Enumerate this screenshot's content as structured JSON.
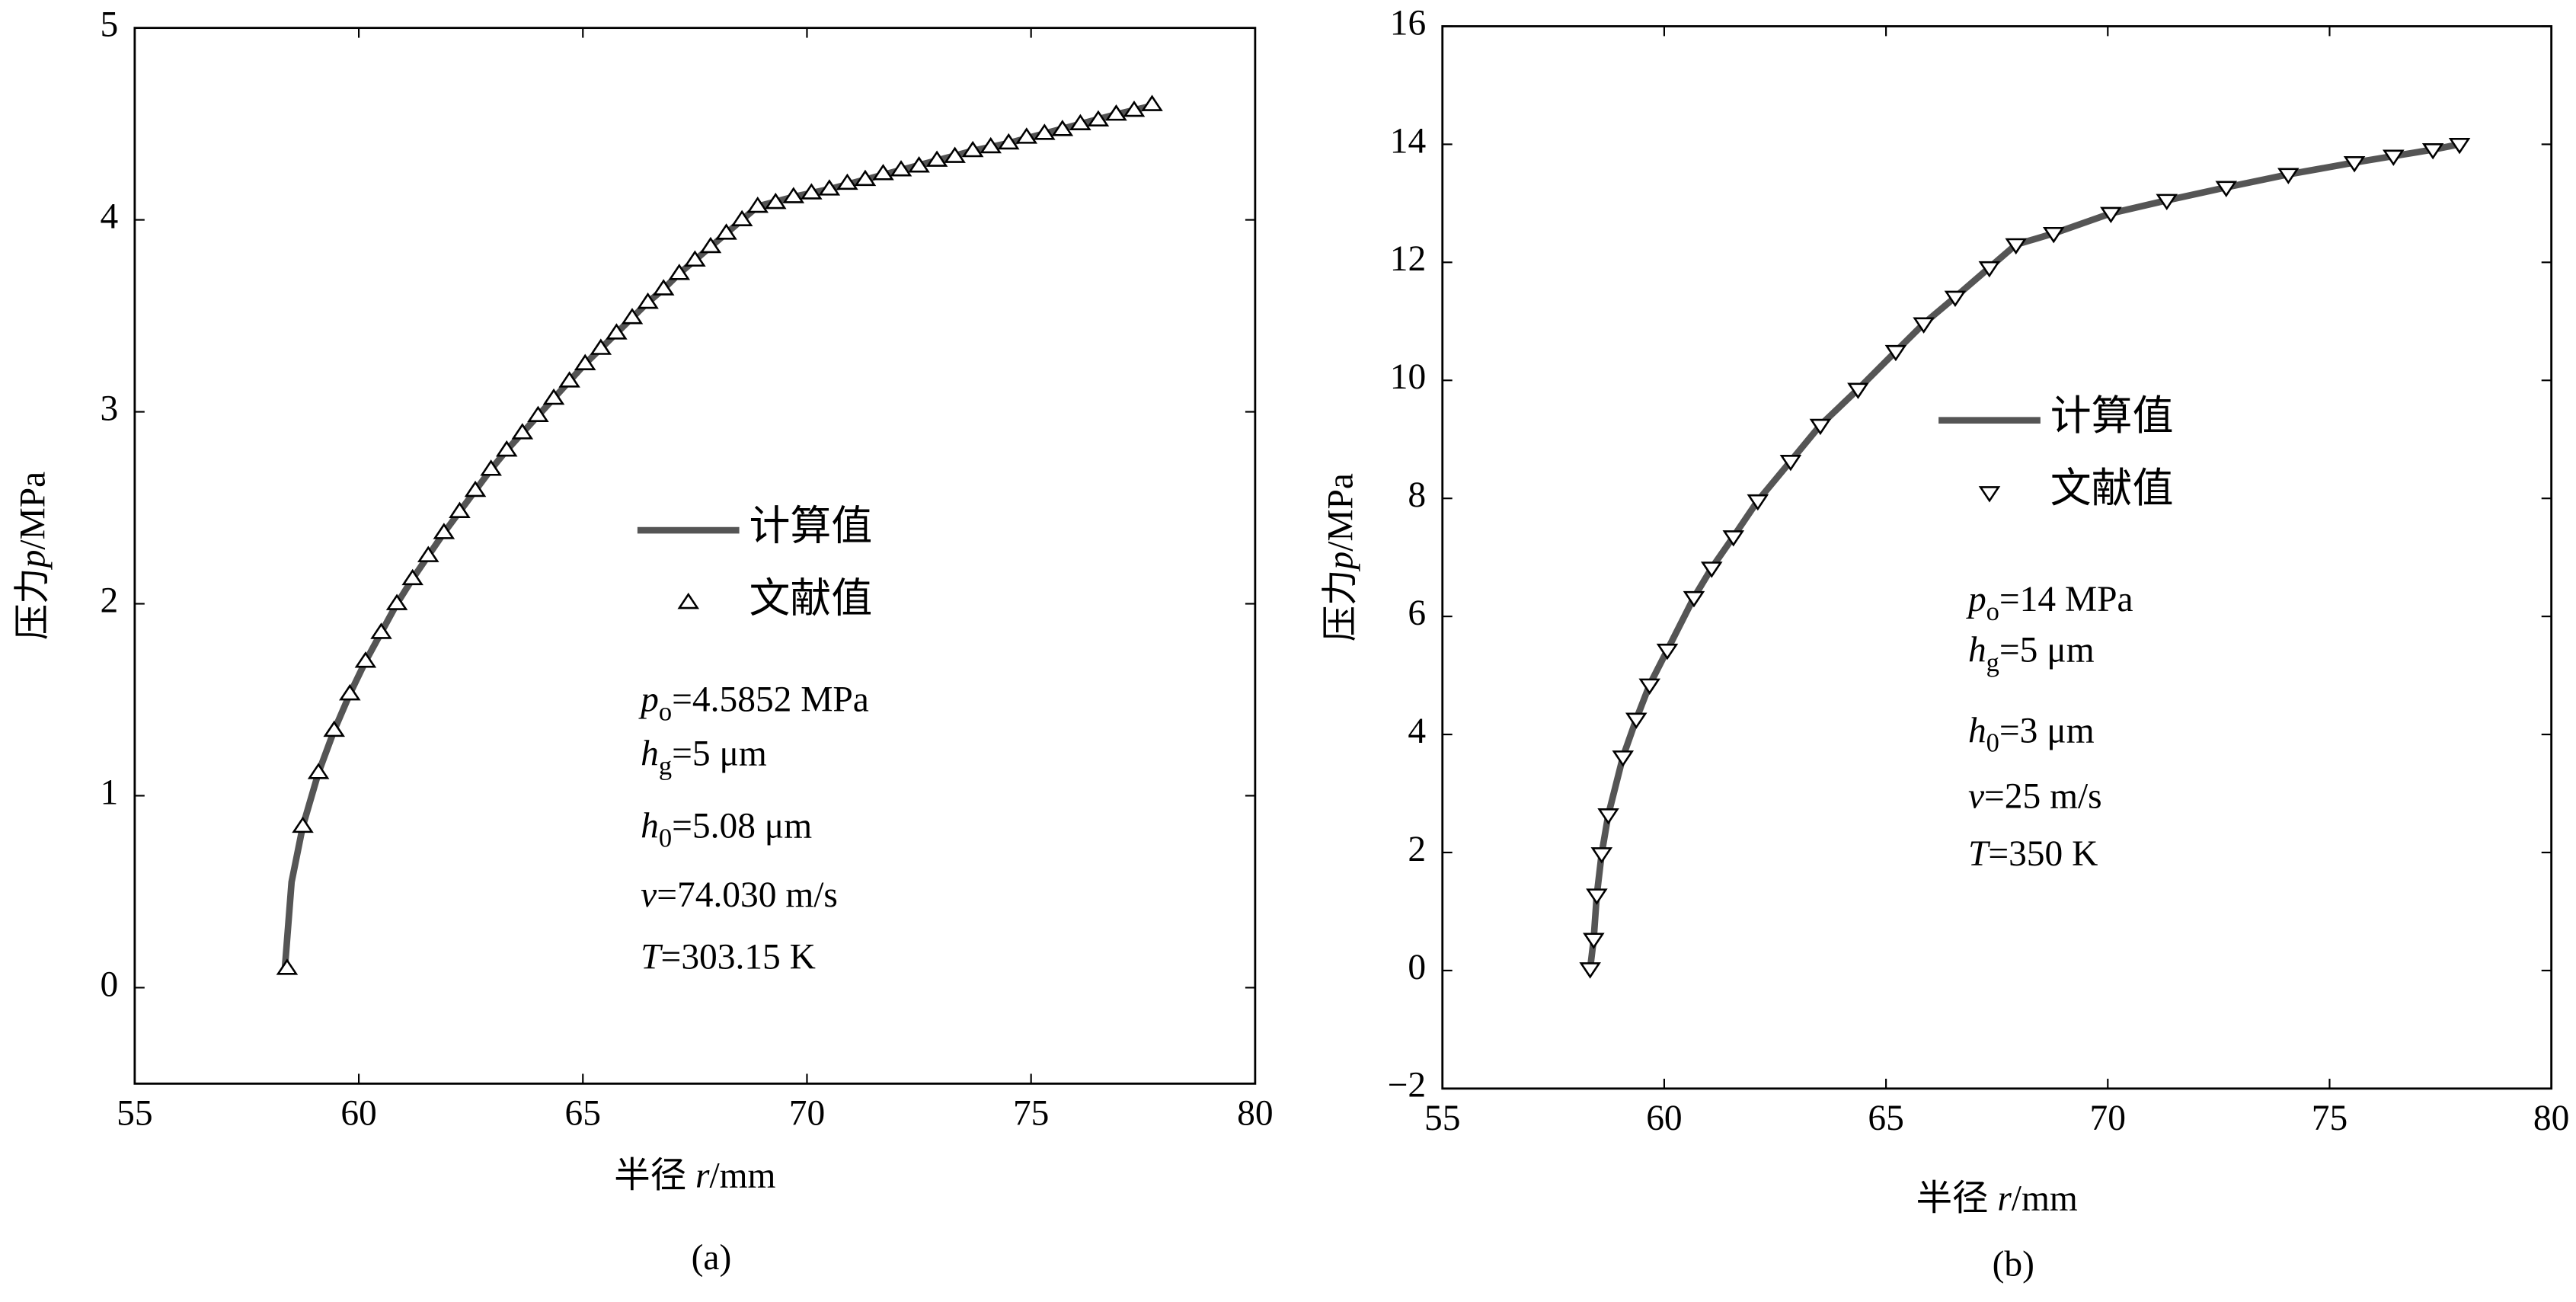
{
  "chart_data": [
    {
      "type": "line",
      "caption": "(a)",
      "xlabel": [
        "半径 ",
        "r",
        "/mm"
      ],
      "ylabel": [
        "压力",
        "p",
        "/MPa"
      ],
      "xlim": [
        55,
        80
      ],
      "xticks": [
        55,
        60,
        65,
        70,
        75,
        80
      ],
      "ylim": [
        -0.5,
        5
      ],
      "yticks": [
        0,
        1,
        2,
        3,
        4,
        5
      ],
      "series": [
        {
          "name": "计算值",
          "color": "#555555",
          "marker": "none",
          "x": [
            58.35,
            58.5,
            58.75,
            59.1,
            59.45,
            59.8,
            60.15,
            60.5,
            60.85,
            61.2,
            61.55,
            61.9,
            62.25,
            62.6,
            62.95,
            63.3,
            63.65,
            64,
            64.35,
            64.7,
            65.05,
            65.4,
            65.75,
            66.1,
            66.45,
            66.8,
            67.15,
            67.5,
            67.85,
            68.2,
            68.55,
            68.9,
            69.7,
            70.5,
            71.3,
            72.1,
            72.9,
            73.7,
            74.5,
            75.3,
            76.1,
            76.9,
            77.8
          ],
          "values": [
            0.1,
            0.55,
            0.84,
            1.12,
            1.34,
            1.53,
            1.7,
            1.85,
            2.0,
            2.13,
            2.25,
            2.37,
            2.48,
            2.59,
            2.7,
            2.8,
            2.89,
            2.98,
            3.07,
            3.16,
            3.25,
            3.33,
            3.41,
            3.49,
            3.57,
            3.64,
            3.72,
            3.79,
            3.86,
            3.93,
            4.0,
            4.07,
            4.12,
            4.16,
            4.21,
            4.26,
            4.31,
            4.36,
            4.4,
            4.45,
            4.5,
            4.55,
            4.6
          ]
        },
        {
          "name": "文献值",
          "color": "#000000",
          "marker": "triangle-up",
          "x": [
            58.4,
            58.75,
            59.1,
            59.45,
            59.8,
            60.15,
            60.5,
            60.85,
            61.2,
            61.55,
            61.9,
            62.25,
            62.6,
            62.95,
            63.3,
            63.65,
            64,
            64.35,
            64.7,
            65.05,
            65.4,
            65.75,
            66.1,
            66.45,
            66.8,
            67.15,
            67.5,
            67.85,
            68.2,
            68.55,
            68.9,
            69.3,
            69.7,
            70.1,
            70.5,
            70.9,
            71.3,
            71.7,
            72.1,
            72.5,
            72.9,
            73.3,
            73.7,
            74.1,
            74.5,
            74.9,
            75.3,
            75.7,
            76.1,
            76.5,
            76.9,
            77.3,
            77.7
          ],
          "values": [
            0.1,
            0.84,
            1.12,
            1.34,
            1.53,
            1.7,
            1.85,
            2.0,
            2.13,
            2.25,
            2.37,
            2.48,
            2.59,
            2.7,
            2.8,
            2.89,
            2.98,
            3.07,
            3.16,
            3.25,
            3.33,
            3.41,
            3.49,
            3.57,
            3.64,
            3.72,
            3.79,
            3.86,
            3.93,
            4.0,
            4.07,
            4.09,
            4.12,
            4.14,
            4.16,
            4.19,
            4.21,
            4.24,
            4.26,
            4.28,
            4.31,
            4.33,
            4.36,
            4.38,
            4.4,
            4.43,
            4.45,
            4.47,
            4.5,
            4.52,
            4.55,
            4.57,
            4.6
          ]
        }
      ],
      "annotations": [
        {
          "symbol": "p",
          "sub": "o",
          "text": "=4.5852 MPa"
        },
        {
          "symbol": "h",
          "sub": "g",
          "text": "=5 μm"
        },
        {
          "symbol": "h",
          "sub": "0",
          "text": "=5.08 μm"
        },
        {
          "symbol": "v",
          "text": "=74.030 m/s"
        },
        {
          "symbol": "T",
          "text": "=303.15 K"
        }
      ]
    },
    {
      "type": "line",
      "caption": "(b)",
      "xlabel": [
        "半径 ",
        "r",
        "/mm"
      ],
      "ylabel": [
        "压力",
        "p",
        "/MPa"
      ],
      "xlim": [
        55,
        80
      ],
      "xticks": [
        55,
        60,
        65,
        70,
        75,
        80
      ],
      "ylim": [
        -2,
        16
      ],
      "yticks": [
        {
          "value": -2,
          "label": "−2"
        },
        0,
        2,
        4,
        6,
        8,
        10,
        12,
        14,
        16
      ],
      "series": [
        {
          "name": "计算值",
          "color": "#555555",
          "marker": "none",
          "x": [
            58.33,
            58.41,
            58.48,
            58.59,
            58.74,
            59.07,
            59.37,
            59.67,
            60.07,
            60.67,
            61.07,
            61.56,
            62.11,
            62.85,
            63.52,
            64.37,
            65.22,
            65.85,
            66.56,
            67.33,
            67.93,
            68.78,
            70.07,
            71.33,
            72.67,
            74.07,
            75.56,
            76.44,
            77.33,
            77.93
          ],
          "values": [
            0.03,
            0.53,
            1.28,
            1.98,
            2.64,
            3.62,
            4.26,
            4.84,
            5.43,
            6.32,
            6.82,
            7.35,
            7.96,
            8.63,
            9.24,
            9.85,
            10.49,
            10.96,
            11.41,
            11.91,
            12.3,
            12.49,
            12.83,
            13.05,
            13.27,
            13.49,
            13.69,
            13.8,
            13.91,
            14.0
          ]
        },
        {
          "name": "文献值",
          "color": "#000000",
          "marker": "triangle-down",
          "x": [
            58.33,
            58.41,
            58.48,
            58.59,
            58.74,
            59.07,
            59.37,
            59.67,
            60.07,
            60.67,
            61.07,
            61.56,
            62.11,
            62.85,
            63.52,
            64.37,
            65.22,
            65.85,
            66.56,
            67.33,
            67.93,
            68.78,
            70.07,
            71.33,
            72.67,
            74.07,
            75.56,
            76.44,
            77.33,
            77.93
          ],
          "values": [
            0.03,
            0.53,
            1.28,
            1.98,
            2.64,
            3.62,
            4.26,
            4.84,
            5.43,
            6.32,
            6.82,
            7.35,
            7.96,
            8.63,
            9.24,
            9.85,
            10.49,
            10.96,
            11.41,
            11.91,
            12.3,
            12.49,
            12.83,
            13.05,
            13.27,
            13.49,
            13.69,
            13.8,
            13.91,
            14.0
          ]
        }
      ],
      "annotations": [
        {
          "symbol": "p",
          "sub": "o",
          "text": "=14 MPa"
        },
        {
          "symbol": "h",
          "sub": "g",
          "text": "=5 μm"
        },
        {
          "symbol": "h",
          "sub": "0",
          "text": "=3 μm"
        },
        {
          "symbol": "v",
          "text": "=25 m/s"
        },
        {
          "symbol": "T",
          "text": "=350 K"
        }
      ]
    }
  ]
}
